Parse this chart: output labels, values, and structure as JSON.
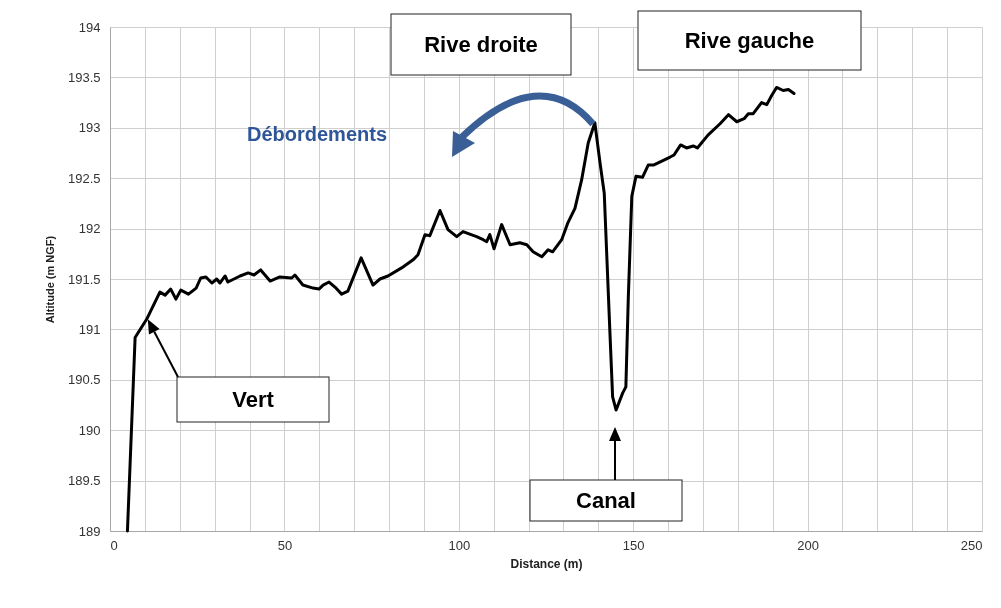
{
  "chart_data": {
    "type": "line",
    "xlabel": "Distance (m)",
    "ylabel": "Altitude (m NGF)",
    "xlim": [
      0,
      250
    ],
    "ylim": [
      189,
      194
    ],
    "xticks": [
      0,
      {
        "value": 10,
        "label": null
      },
      {
        "value": 20,
        "label": null
      },
      {
        "value": 30,
        "label": null
      },
      {
        "value": 40,
        "label": null
      },
      50,
      {
        "value": 60,
        "label": null
      },
      {
        "value": 70,
        "label": null
      },
      {
        "value": 80,
        "label": null
      },
      {
        "value": 90,
        "label": null
      },
      100,
      {
        "value": 110,
        "label": null
      },
      {
        "value": 120,
        "label": null
      },
      {
        "value": 130,
        "label": null
      },
      {
        "value": 140,
        "label": null
      },
      150,
      {
        "value": 160,
        "label": null
      },
      {
        "value": 170,
        "label": null
      },
      {
        "value": 180,
        "label": null
      },
      {
        "value": 190,
        "label": null
      },
      200,
      {
        "value": 210,
        "label": null
      },
      {
        "value": 220,
        "label": null
      },
      {
        "value": 230,
        "label": null
      },
      {
        "value": 240,
        "label": null
      },
      250
    ],
    "yticks": [
      189,
      189.5,
      190,
      190.5,
      191,
      191.5,
      192,
      192.5,
      193,
      193.5,
      194
    ],
    "grid": true,
    "marker": "none",
    "line_style": "solid",
    "x": [
      5,
      7.2,
      10.5,
      14.3,
      15.8,
      17.4,
      18.9,
      20.3,
      22.5,
      24.7,
      26.0,
      27.5,
      29.2,
      30.6,
      31.5,
      33.0,
      33.8,
      37.3,
      39.6,
      41.3,
      43.2,
      45.9,
      48.7,
      52.1,
      53.0,
      55.3,
      58.2,
      59.9,
      61.1,
      62.8,
      64.5,
      66.4,
      68.2,
      72.0,
      75.4,
      77.4,
      79.7,
      83.6,
      86.9,
      88.3,
      90.3,
      91.7,
      94.6,
      96.9,
      99.4,
      101.2,
      105.1,
      107.0,
      108.0,
      108.9,
      110.1,
      112.3,
      114.7,
      117.5,
      119.5,
      121.3,
      123.8,
      125.6,
      126.9,
      129.5,
      131.3,
      133.3,
      135.2,
      137.1,
      139.0,
      140.5,
      141.7,
      143.3,
      144.1,
      145.1,
      147.0,
      147.9,
      148.6,
      149.6,
      150.8,
      152.7,
      154.3,
      155.8,
      160.6,
      161.7,
      163.6,
      165.3,
      167.2,
      168.4,
      171.5,
      174.9,
      177.3,
      179.7,
      181.8,
      183.0,
      184.4,
      186.8,
      188.3,
      189.7,
      191.1,
      193.0,
      194.5,
      196.1
    ],
    "series": [
      {
        "color": "#000000",
        "values": [
          189,
          190.92,
          191.1,
          191.37,
          191.34,
          191.4,
          191.3,
          191.39,
          191.35,
          191.41,
          191.51,
          191.52,
          191.46,
          191.5,
          191.46,
          191.53,
          191.47,
          191.53,
          191.56,
          191.54,
          191.59,
          191.48,
          191.52,
          191.51,
          191.54,
          191.44,
          191.41,
          191.4,
          191.44,
          191.47,
          191.42,
          191.35,
          191.38,
          191.71,
          191.44,
          191.5,
          191.53,
          191.61,
          191.69,
          191.74,
          191.94,
          191.93,
          192.18,
          191.99,
          191.92,
          191.97,
          191.92,
          191.89,
          191.87,
          191.94,
          191.8,
          192.04,
          191.84,
          191.86,
          191.84,
          191.77,
          191.72,
          191.79,
          191.77,
          191.89,
          192.06,
          192.2,
          192.48,
          192.85,
          193.05,
          192.65,
          192.35,
          190.99,
          190.33,
          190.2,
          190.37,
          190.43,
          191.32,
          192.32,
          192.52,
          192.51,
          192.63,
          192.63,
          192.71,
          192.73,
          192.83,
          192.8,
          192.82,
          192.8,
          192.93,
          193.04,
          193.13,
          193.06,
          193.09,
          193.14,
          193.14,
          193.25,
          193.23,
          193.32,
          193.4,
          193.37,
          193.38,
          193.34
        ]
      }
    ],
    "annotations": [
      "Rive droite",
      "Rive gauche",
      "Débordements",
      "Vert",
      "Canal"
    ]
  }
}
